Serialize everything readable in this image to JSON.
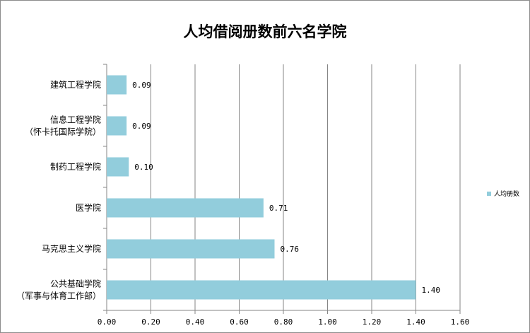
{
  "chart_data": {
    "type": "bar",
    "orientation": "horizontal",
    "title": "人均借阅册数前六名学院",
    "categories": [
      [
        "建筑工程学院"
      ],
      [
        "信息工程学院",
        "（怀卡托国际学院）"
      ],
      [
        "制药工程学院"
      ],
      [
        "医学院"
      ],
      [
        "马克思主义学院"
      ],
      [
        "公共基础学院",
        "（军事与体育工作部）"
      ]
    ],
    "series": [
      {
        "name": "人均册数",
        "values": [
          0.09,
          0.09,
          0.1,
          0.71,
          0.76,
          1.4
        ],
        "color": "#92cddc"
      }
    ],
    "data_labels": [
      "0.09",
      "0.09",
      "0.10",
      "0.71",
      "0.76",
      "1.40"
    ],
    "xlim": [
      0,
      1.6
    ],
    "x_ticks": [
      "0.00",
      "0.20",
      "0.40",
      "0.60",
      "0.80",
      "1.00",
      "1.20",
      "1.40",
      "1.60"
    ],
    "xlabel": "",
    "ylabel": "",
    "grid": "vertical",
    "legend_position": "right"
  }
}
